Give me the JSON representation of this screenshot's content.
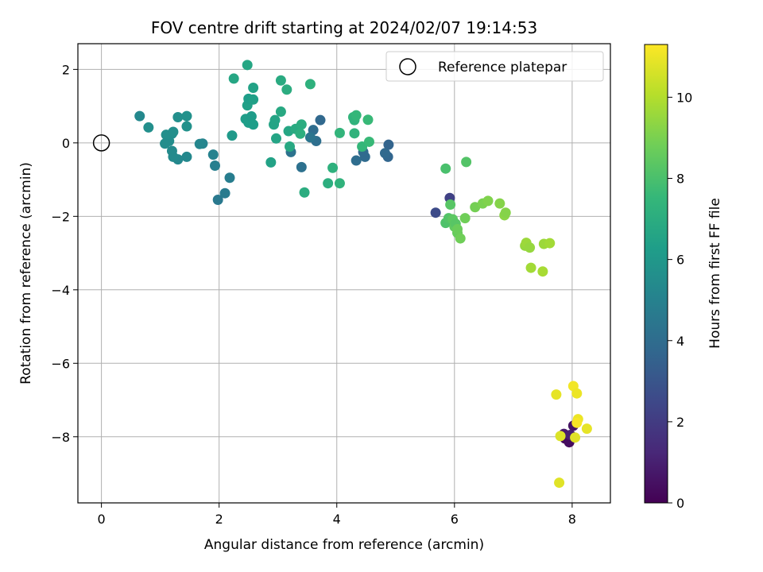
{
  "chart_data": {
    "type": "scatter",
    "title": "FOV centre drift starting at 2024/02/07 19:14:53",
    "xlabel": "Angular distance from reference (arcmin)",
    "ylabel": "Rotation from reference (arcmin)",
    "xlim": [
      -0.4,
      8.65
    ],
    "ylim": [
      -9.8,
      2.7
    ],
    "xticks": [
      0,
      2,
      4,
      6,
      8
    ],
    "yticks": [
      2,
      0,
      -2,
      -4,
      -6,
      -8
    ],
    "grid": true,
    "legend": {
      "placement": "top-right",
      "label": "Reference platepar",
      "marker": "open-circle"
    },
    "reference_point": {
      "x": 0,
      "y": 0
    },
    "colorbar": {
      "label": "Hours from first FF file",
      "colormap": "viridis",
      "range": [
        0,
        11.3
      ],
      "ticks": [
        0,
        2,
        4,
        6,
        8,
        10
      ]
    },
    "colormap_stops": [
      "#440154",
      "#482878",
      "#3e4989",
      "#31688e",
      "#26828e",
      "#1f9e89",
      "#35b779",
      "#6ece58",
      "#b5de2b",
      "#fde725"
    ],
    "series": [
      {
        "points": [
          [
            7.88,
            -8.05,
            0.2
          ],
          [
            7.95,
            -8.15,
            0.4
          ],
          [
            8.02,
            -7.7,
            0.6
          ],
          [
            7.86,
            -7.92,
            0.8
          ],
          [
            7.97,
            -7.95,
            1.0
          ],
          [
            5.92,
            -1.5,
            2.2
          ],
          [
            5.68,
            -1.9,
            2.6
          ],
          [
            4.88,
            -0.05,
            3.6
          ],
          [
            4.87,
            -0.38,
            3.7
          ],
          [
            4.82,
            -0.28,
            3.8
          ],
          [
            4.48,
            -0.38,
            3.9
          ],
          [
            4.33,
            -0.48,
            4.0
          ],
          [
            4.45,
            -0.25,
            3.9
          ],
          [
            3.72,
            0.62,
            3.8
          ],
          [
            3.6,
            0.35,
            4.0
          ],
          [
            3.65,
            0.05,
            4.1
          ],
          [
            3.4,
            -0.66,
            4.2
          ],
          [
            3.55,
            0.15,
            4.4
          ],
          [
            3.22,
            -0.25,
            4.3
          ],
          [
            1.98,
            -1.55,
            4.6
          ],
          [
            2.1,
            -1.37,
            4.7
          ],
          [
            2.18,
            -0.95,
            4.8
          ],
          [
            1.93,
            -0.62,
            4.9
          ],
          [
            1.9,
            -0.32,
            5.0
          ],
          [
            1.72,
            -0.02,
            5.1
          ],
          [
            1.67,
            -0.03,
            5.2
          ],
          [
            1.45,
            -0.38,
            5.3
          ],
          [
            1.3,
            -0.45,
            5.3
          ],
          [
            1.22,
            -0.38,
            5.4
          ],
          [
            1.2,
            -0.22,
            5.4
          ],
          [
            1.2,
            0.25,
            5.5
          ],
          [
            1.15,
            0.05,
            5.5
          ],
          [
            1.1,
            0.22,
            5.6
          ],
          [
            1.08,
            -0.02,
            5.5
          ],
          [
            1.3,
            0.7,
            5.6
          ],
          [
            1.45,
            0.73,
            5.7
          ],
          [
            1.45,
            0.45,
            5.7
          ],
          [
            0.65,
            0.73,
            5.3
          ],
          [
            0.8,
            0.42,
            5.6
          ],
          [
            1.22,
            0.3,
            5.6
          ],
          [
            2.22,
            0.2,
            6.1
          ],
          [
            2.45,
            0.65,
            6.3
          ],
          [
            2.5,
            0.55,
            6.3
          ],
          [
            2.55,
            0.72,
            6.2
          ],
          [
            2.58,
            0.5,
            6.3
          ],
          [
            2.48,
            1.02,
            6.4
          ],
          [
            2.5,
            1.2,
            6.3
          ],
          [
            2.58,
            1.18,
            6.4
          ],
          [
            2.58,
            1.5,
            6.5
          ],
          [
            2.25,
            1.75,
            6.7
          ],
          [
            2.48,
            2.12,
            6.7
          ],
          [
            2.88,
            -0.53,
            6.5
          ],
          [
            2.93,
            0.5,
            6.6
          ],
          [
            2.95,
            0.62,
            6.6
          ],
          [
            2.97,
            0.12,
            6.6
          ],
          [
            3.05,
            0.85,
            6.8
          ],
          [
            3.05,
            1.7,
            6.9
          ],
          [
            3.2,
            -0.1,
            6.8
          ],
          [
            3.18,
            0.32,
            6.7
          ],
          [
            3.15,
            1.45,
            7.0
          ],
          [
            3.3,
            0.38,
            6.9
          ],
          [
            3.4,
            0.5,
            7.0
          ],
          [
            3.38,
            0.25,
            7.1
          ],
          [
            3.45,
            -1.35,
            7.0
          ],
          [
            3.55,
            1.6,
            7.2
          ],
          [
            3.85,
            -1.1,
            7.1
          ],
          [
            3.93,
            -0.68,
            7.2
          ],
          [
            4.05,
            -1.1,
            7.3
          ],
          [
            4.05,
            0.27,
            7.4
          ],
          [
            4.28,
            0.7,
            7.4
          ],
          [
            4.3,
            0.62,
            7.3
          ],
          [
            4.33,
            0.75,
            7.5
          ],
          [
            4.3,
            0.26,
            7.3
          ],
          [
            4.43,
            -0.1,
            7.5
          ],
          [
            4.53,
            0.63,
            7.6
          ],
          [
            4.55,
            0.03,
            7.6
          ],
          [
            5.85,
            -0.7,
            8.0
          ],
          [
            5.85,
            -2.18,
            8.1
          ],
          [
            5.9,
            -2.05,
            8.2
          ],
          [
            5.93,
            -1.68,
            8.3
          ],
          [
            5.97,
            -2.08,
            8.4
          ],
          [
            6.0,
            -2.28,
            8.5
          ],
          [
            6.02,
            -2.2,
            8.3
          ],
          [
            6.05,
            -2.45,
            8.6
          ],
          [
            6.05,
            -2.35,
            8.7
          ],
          [
            6.1,
            -2.6,
            8.8
          ],
          [
            6.2,
            -0.52,
            8.2
          ],
          [
            6.18,
            -2.05,
            8.8
          ],
          [
            6.35,
            -1.75,
            8.9
          ],
          [
            6.48,
            -1.65,
            9.0
          ],
          [
            6.57,
            -1.58,
            9.1
          ],
          [
            6.77,
            -1.65,
            9.2
          ],
          [
            6.85,
            -1.97,
            9.3
          ],
          [
            6.87,
            -1.9,
            9.2
          ],
          [
            7.2,
            -2.8,
            9.5
          ],
          [
            7.22,
            -2.72,
            9.6
          ],
          [
            7.28,
            -2.85,
            9.5
          ],
          [
            7.3,
            -3.4,
            9.7
          ],
          [
            7.5,
            -3.5,
            9.8
          ],
          [
            7.52,
            -2.75,
            9.6
          ],
          [
            7.62,
            -2.73,
            9.7
          ],
          [
            7.73,
            -6.85,
            10.9
          ],
          [
            7.8,
            -7.98,
            10.7
          ],
          [
            7.78,
            -9.25,
            10.8
          ],
          [
            8.02,
            -6.62,
            11.1
          ],
          [
            8.08,
            -6.82,
            11.0
          ],
          [
            8.05,
            -8.02,
            10.8
          ],
          [
            8.1,
            -7.52,
            11.0
          ],
          [
            8.08,
            -7.62,
            11.2
          ],
          [
            8.25,
            -7.78,
            10.9
          ]
        ]
      }
    ]
  }
}
